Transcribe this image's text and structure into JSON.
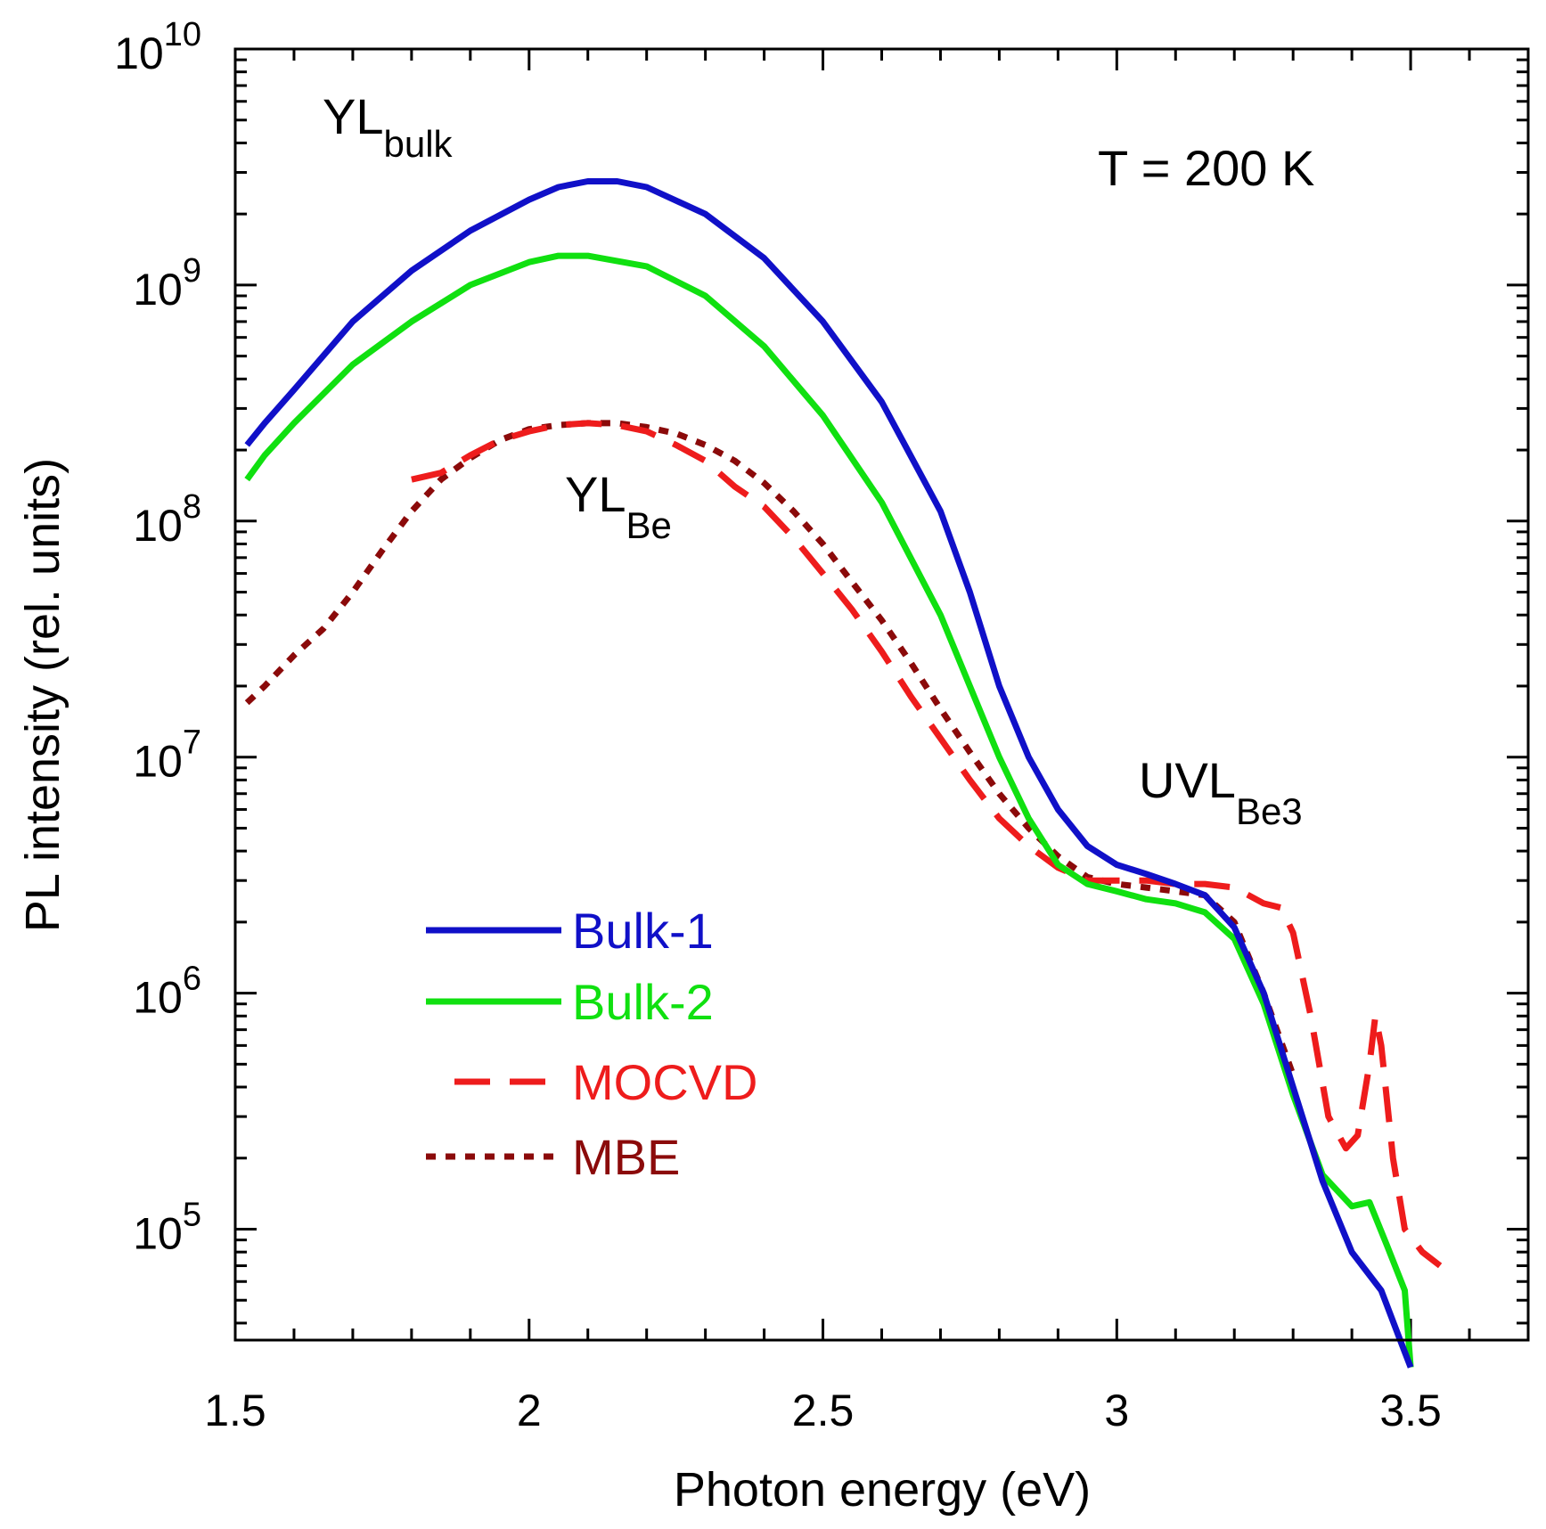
{
  "chart_data": {
    "type": "line",
    "title": "",
    "xlabel": "Photon energy (eV)",
    "ylabel": "PL intensity (rel. units)",
    "xlim": [
      1.5,
      3.7
    ],
    "ylim_log10": [
      4.53,
      10
    ],
    "y_scale": "log",
    "grid": false,
    "legend_position": "lower-left",
    "x_ticks": [
      {
        "value": 1.5,
        "label": "1.5"
      },
      {
        "value": 2.0,
        "label": "2"
      },
      {
        "value": 2.5,
        "label": "2.5"
      },
      {
        "value": 3.0,
        "label": "3"
      },
      {
        "value": 3.5,
        "label": "3.5"
      }
    ],
    "y_ticks": [
      {
        "exp": 5,
        "base": "10",
        "sup": "5"
      },
      {
        "exp": 6,
        "base": "10",
        "sup": "6"
      },
      {
        "exp": 7,
        "base": "10",
        "sup": "7"
      },
      {
        "exp": 8,
        "base": "10",
        "sup": "8"
      },
      {
        "exp": 9,
        "base": "10",
        "sup": "9"
      },
      {
        "exp": 10,
        "base": "10",
        "sup": "10"
      }
    ],
    "annotations": {
      "temperature": "T = 200 K",
      "yl_bulk": {
        "main": "YL",
        "sub": "bulk"
      },
      "yl_be": {
        "main": "YL",
        "sub": "Be"
      },
      "uvl_be3": {
        "main": "UVL",
        "sub": "Be3"
      }
    },
    "series": [
      {
        "name": "Bulk-1",
        "color": "#1010c8",
        "style": "solid",
        "points": [
          [
            1.52,
            210000000.0
          ],
          [
            1.55,
            260000000.0
          ],
          [
            1.6,
            360000000.0
          ],
          [
            1.7,
            700000000.0
          ],
          [
            1.8,
            1150000000.0
          ],
          [
            1.9,
            1700000000.0
          ],
          [
            2.0,
            2300000000.0
          ],
          [
            2.05,
            2600000000.0
          ],
          [
            2.1,
            2750000000.0
          ],
          [
            2.15,
            2750000000.0
          ],
          [
            2.2,
            2600000000.0
          ],
          [
            2.3,
            2000000000.0
          ],
          [
            2.4,
            1300000000.0
          ],
          [
            2.5,
            700000000.0
          ],
          [
            2.6,
            320000000.0
          ],
          [
            2.7,
            110000000.0
          ],
          [
            2.75,
            50000000.0
          ],
          [
            2.8,
            20000000.0
          ],
          [
            2.85,
            10000000.0
          ],
          [
            2.9,
            6000000.0
          ],
          [
            2.95,
            4200000.0
          ],
          [
            3.0,
            3500000.0
          ],
          [
            3.05,
            3200000.0
          ],
          [
            3.1,
            2900000.0
          ],
          [
            3.15,
            2600000.0
          ],
          [
            3.2,
            1900000.0
          ],
          [
            3.25,
            1000000.0
          ],
          [
            3.3,
            400000.0
          ],
          [
            3.35,
            160000.0
          ],
          [
            3.4,
            80000.0
          ],
          [
            3.45,
            55000.0
          ],
          [
            3.48,
            35000.0
          ],
          [
            3.5,
            26000.0
          ]
        ]
      },
      {
        "name": "Bulk-2",
        "color": "#10e010",
        "style": "solid",
        "points": [
          [
            1.52,
            150000000.0
          ],
          [
            1.55,
            190000000.0
          ],
          [
            1.6,
            260000000.0
          ],
          [
            1.7,
            460000000.0
          ],
          [
            1.8,
            700000000.0
          ],
          [
            1.9,
            1000000000.0
          ],
          [
            2.0,
            1250000000.0
          ],
          [
            2.05,
            1330000000.0
          ],
          [
            2.1,
            1330000000.0
          ],
          [
            2.2,
            1200000000.0
          ],
          [
            2.3,
            900000000.0
          ],
          [
            2.4,
            550000000.0
          ],
          [
            2.5,
            280000000.0
          ],
          [
            2.6,
            120000000.0
          ],
          [
            2.7,
            40000000.0
          ],
          [
            2.75,
            20000000.0
          ],
          [
            2.8,
            10000000.0
          ],
          [
            2.85,
            5500000.0
          ],
          [
            2.9,
            3500000.0
          ],
          [
            2.95,
            2900000.0
          ],
          [
            3.0,
            2700000.0
          ],
          [
            3.05,
            2500000.0
          ],
          [
            3.1,
            2400000.0
          ],
          [
            3.15,
            2200000.0
          ],
          [
            3.2,
            1700000.0
          ],
          [
            3.25,
            900000.0
          ],
          [
            3.3,
            370000.0
          ],
          [
            3.35,
            170000.0
          ],
          [
            3.4,
            125000.0
          ],
          [
            3.43,
            130000.0
          ],
          [
            3.46,
            85000.0
          ],
          [
            3.49,
            55000.0
          ],
          [
            3.5,
            26000.0
          ]
        ]
      },
      {
        "name": "MOCVD",
        "color": "#ee1c1c",
        "style": "dashed",
        "points": [
          [
            1.8,
            150000000.0
          ],
          [
            1.85,
            160000000.0
          ],
          [
            1.9,
            190000000.0
          ],
          [
            1.95,
            220000000.0
          ],
          [
            2.0,
            240000000.0
          ],
          [
            2.05,
            255000000.0
          ],
          [
            2.1,
            260000000.0
          ],
          [
            2.15,
            255000000.0
          ],
          [
            2.2,
            240000000.0
          ],
          [
            2.25,
            210000000.0
          ],
          [
            2.3,
            180000000.0
          ],
          [
            2.35,
            140000000.0
          ],
          [
            2.4,
            115000000.0
          ],
          [
            2.45,
            85000000.0
          ],
          [
            2.5,
            60000000.0
          ],
          [
            2.55,
            42000000.0
          ],
          [
            2.6,
            28000000.0
          ],
          [
            2.65,
            18000000.0
          ],
          [
            2.7,
            12000000.0
          ],
          [
            2.75,
            8000000.0
          ],
          [
            2.8,
            5500000.0
          ],
          [
            2.85,
            4200000.0
          ],
          [
            2.9,
            3400000.0
          ],
          [
            2.95,
            3000000.0
          ],
          [
            3.0,
            3000000.0
          ],
          [
            3.05,
            3000000.0
          ],
          [
            3.1,
            2900000.0
          ],
          [
            3.15,
            2900000.0
          ],
          [
            3.2,
            2800000.0
          ],
          [
            3.25,
            2400000.0
          ],
          [
            3.28,
            2300000.0
          ],
          [
            3.3,
            1800000.0
          ],
          [
            3.33,
            800000.0
          ],
          [
            3.36,
            300000.0
          ],
          [
            3.39,
            220000.0
          ],
          [
            3.41,
            250000.0
          ],
          [
            3.43,
            500000.0
          ],
          [
            3.44,
            800000.0
          ],
          [
            3.45,
            600000.0
          ],
          [
            3.47,
            200000.0
          ],
          [
            3.49,
            100000.0
          ],
          [
            3.52,
            80000.0
          ],
          [
            3.55,
            70000.0
          ]
        ]
      },
      {
        "name": "MBE",
        "color": "#8b0a0a",
        "style": "dotted",
        "points": [
          [
            1.52,
            17000000.0
          ],
          [
            1.55,
            20000000.0
          ],
          [
            1.6,
            27000000.0
          ],
          [
            1.65,
            35000000.0
          ],
          [
            1.7,
            50000000.0
          ],
          [
            1.75,
            75000000.0
          ],
          [
            1.8,
            110000000.0
          ],
          [
            1.85,
            150000000.0
          ],
          [
            1.9,
            185000000.0
          ],
          [
            1.95,
            220000000.0
          ],
          [
            2.0,
            245000000.0
          ],
          [
            2.05,
            255000000.0
          ],
          [
            2.1,
            260000000.0
          ],
          [
            2.15,
            260000000.0
          ],
          [
            2.2,
            250000000.0
          ],
          [
            2.25,
            235000000.0
          ],
          [
            2.3,
            210000000.0
          ],
          [
            2.35,
            180000000.0
          ],
          [
            2.4,
            145000000.0
          ],
          [
            2.45,
            110000000.0
          ],
          [
            2.5,
            80000000.0
          ],
          [
            2.55,
            55000000.0
          ],
          [
            2.6,
            38000000.0
          ],
          [
            2.65,
            25000000.0
          ],
          [
            2.7,
            16000000.0
          ],
          [
            2.75,
            10500000.0
          ],
          [
            2.8,
            7000000.0
          ],
          [
            2.85,
            5000000.0
          ],
          [
            2.9,
            3800000.0
          ],
          [
            2.95,
            3100000.0
          ],
          [
            3.0,
            2900000.0
          ],
          [
            3.05,
            2800000.0
          ],
          [
            3.1,
            2700000.0
          ],
          [
            3.15,
            2600000.0
          ],
          [
            3.2,
            2000000.0
          ],
          [
            3.25,
            1000000.0
          ],
          [
            3.3,
            450000.0
          ]
        ]
      }
    ]
  }
}
